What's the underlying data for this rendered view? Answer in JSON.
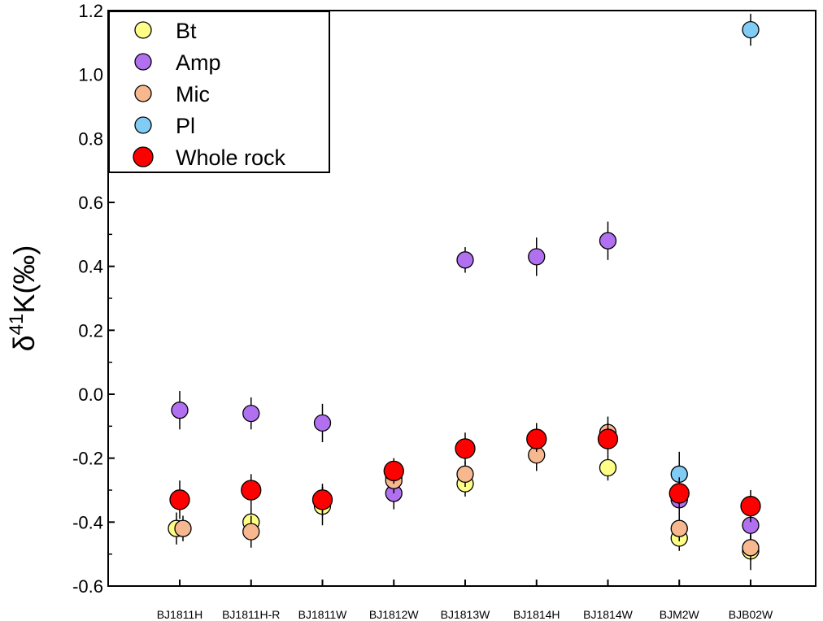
{
  "chart_data": {
    "type": "scatter",
    "ylabel": {
      "main": "δ",
      "sup": "41",
      "rest": "K(‰)"
    },
    "xlabel": "",
    "ylim": [
      -0.6,
      1.2
    ],
    "yticks": [
      -0.6,
      -0.4,
      -0.2,
      0.0,
      0.2,
      0.4,
      0.6,
      0.8,
      1.0,
      1.2
    ],
    "ytick_labels": [
      "-0.6",
      "-0.4",
      "-0.2",
      "0.0",
      "0.2",
      "0.4",
      "0.6",
      "0.8",
      "1.0",
      "1.2"
    ],
    "categories": [
      "BJ1811H",
      "BJ1811H-R",
      "BJ1811W",
      "BJ1812W",
      "BJ1813W",
      "BJ1814H",
      "BJ1814W",
      "BJM2W",
      "BJB02W"
    ],
    "legend_position": "top-left",
    "grid": false,
    "series": [
      {
        "name": "Bt",
        "color": "#ffff88",
        "points": [
          {
            "cat": "BJ1811H",
            "y": -0.42,
            "err": 0.05
          },
          {
            "cat": "BJ1811H-R",
            "y": -0.4,
            "err": 0.05
          },
          {
            "cat": "BJ1811W",
            "y": -0.35,
            "err": 0.06
          },
          {
            "cat": "BJ1812W",
            "y": -0.26,
            "err": 0.05
          },
          {
            "cat": "BJ1813W",
            "y": -0.28,
            "err": 0.04
          },
          {
            "cat": "BJ1814H",
            "y": -0.14,
            "err": 0.05
          },
          {
            "cat": "BJ1814W",
            "y": -0.23,
            "err": 0.04
          },
          {
            "cat": "BJM2W",
            "y": -0.45,
            "err": 0.04
          },
          {
            "cat": "BJB02W",
            "y": -0.49,
            "err": 0.06
          }
        ]
      },
      {
        "name": "Amp",
        "color": "#b070f0",
        "points": [
          {
            "cat": "BJ1811H",
            "y": -0.05,
            "err": 0.06
          },
          {
            "cat": "BJ1811H-R",
            "y": -0.06,
            "err": 0.05
          },
          {
            "cat": "BJ1811W",
            "y": -0.09,
            "err": 0.06
          },
          {
            "cat": "BJ1812W",
            "y": -0.31,
            "err": 0.05
          },
          {
            "cat": "BJ1813W",
            "y": 0.42,
            "err": 0.04
          },
          {
            "cat": "BJ1814H",
            "y": 0.43,
            "err": 0.06
          },
          {
            "cat": "BJ1814W",
            "y": 0.48,
            "err": 0.06
          },
          {
            "cat": "BJM2W",
            "y": -0.33,
            "err": 0.05
          },
          {
            "cat": "BJB02W",
            "y": -0.41,
            "err": 0.05
          }
        ]
      },
      {
        "name": "Mic",
        "color": "#f7b890",
        "points": [
          {
            "cat": "BJ1811H",
            "y": -0.42,
            "err": 0.04
          },
          {
            "cat": "BJ1811H-R",
            "y": -0.43,
            "err": 0.05
          },
          {
            "cat": "BJ1811W",
            "y": -0.33,
            "err": 0.04
          },
          {
            "cat": "BJ1812W",
            "y": -0.27,
            "err": 0.04
          },
          {
            "cat": "BJ1813W",
            "y": -0.25,
            "err": 0.04
          },
          {
            "cat": "BJ1814H",
            "y": -0.19,
            "err": 0.05
          },
          {
            "cat": "BJ1814W",
            "y": -0.12,
            "err": 0.05
          },
          {
            "cat": "BJM2W",
            "y": -0.42,
            "err": 0.04
          },
          {
            "cat": "BJB02W",
            "y": -0.48,
            "err": 0.04
          }
        ]
      },
      {
        "name": "Pl",
        "color": "#80ccf4",
        "points": [
          {
            "cat": "BJM2W",
            "y": -0.25,
            "err": 0.07
          },
          {
            "cat": "BJB02W",
            "y": 1.14,
            "err": 0.05
          }
        ]
      },
      {
        "name": "Whole rock",
        "color": "#ff0000",
        "large": true,
        "points": [
          {
            "cat": "BJ1811H",
            "y": -0.33,
            "err": 0.06
          },
          {
            "cat": "BJ1811H-R",
            "y": -0.3,
            "err": 0.05
          },
          {
            "cat": "BJ1811W",
            "y": -0.33,
            "err": 0.05
          },
          {
            "cat": "BJ1812W",
            "y": -0.24,
            "err": 0.04
          },
          {
            "cat": "BJ1813W",
            "y": -0.17,
            "err": 0.05
          },
          {
            "cat": "BJ1814H",
            "y": -0.14,
            "err": 0.04
          },
          {
            "cat": "BJ1814W",
            "y": -0.14,
            "err": 0.05
          },
          {
            "cat": "BJM2W",
            "y": -0.31,
            "err": 0.05
          },
          {
            "cat": "BJB02W",
            "y": -0.35,
            "err": 0.05
          }
        ]
      }
    ]
  }
}
